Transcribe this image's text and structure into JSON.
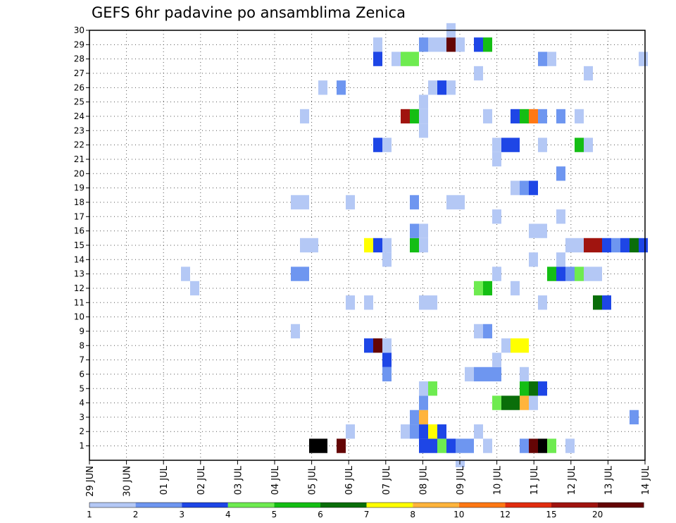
{
  "chart_data": {
    "type": "heatmap",
    "title": "GEFS 6hr padavine po ansamblima Zenica",
    "xlabel": "",
    "ylabel": "",
    "steps_per_day": 4,
    "x_tick_labels": [
      "29 JUN",
      "30 JUN",
      "01 JUL",
      "02 JUL",
      "03 JUL",
      "04 JUL",
      "05 JUL",
      "06 JUL",
      "07 JUL",
      "08 JUL",
      "09 JUL",
      "10 JUL",
      "11 JUL",
      "12 JUL",
      "13 JUL",
      "14 JUL"
    ],
    "members": [
      1,
      2,
      3,
      4,
      5,
      6,
      7,
      8,
      9,
      10,
      11,
      12,
      13,
      14,
      15,
      16,
      17,
      18,
      19,
      20,
      21,
      22,
      23,
      24,
      25,
      26,
      27,
      28,
      29,
      30
    ],
    "y_range": [
      0,
      30
    ],
    "grid": true,
    "legend_placement": "bottom",
    "color_scale": {
      "colors": [
        "#b4c8f5",
        "#6e96f0",
        "#1e46e6",
        "#6eeb50",
        "#14be14",
        "#0a6e0a",
        "#ffff00",
        "#ffb43c",
        "#ff7814",
        "#e12d0f",
        "#a0140f",
        "#640505"
      ],
      "labels": [
        "1",
        "2",
        "3",
        "4",
        "5",
        "6",
        "7",
        "8",
        "10",
        "12",
        "15",
        "20"
      ]
    },
    "values": [
      [
        1,
        24,
        23,
        20,
        0
      ],
      [
        1,
        25,
        23,
        20,
        0
      ],
      [
        1,
        27,
        14,
        12,
        0
      ],
      [
        1,
        36,
        20,
        3,
        0
      ],
      [
        1,
        37,
        20,
        3,
        0
      ],
      [
        1,
        38,
        20,
        4,
        0
      ],
      [
        1,
        39,
        20,
        3,
        0
      ],
      [
        1,
        40,
        20,
        2,
        0
      ],
      [
        1,
        41,
        20,
        2,
        0
      ],
      [
        1,
        43,
        24,
        1,
        0
      ],
      [
        1,
        47,
        12,
        2,
        0
      ],
      [
        1,
        48,
        12,
        12,
        0
      ],
      [
        1,
        49,
        12,
        13,
        0
      ],
      [
        1,
        50,
        12,
        4,
        0
      ],
      [
        1,
        52,
        12,
        1,
        0
      ],
      [
        2,
        28,
        14,
        1,
        0
      ],
      [
        2,
        34,
        17,
        1,
        0
      ],
      [
        2,
        35,
        17,
        2,
        0
      ],
      [
        2,
        36,
        17,
        3,
        0
      ],
      [
        2,
        37,
        17,
        7,
        0
      ],
      [
        2,
        38,
        17,
        3,
        0
      ],
      [
        2,
        42,
        17,
        1,
        0
      ],
      [
        3,
        35,
        18,
        2,
        0
      ],
      [
        3,
        36,
        18,
        8,
        0
      ],
      [
        3,
        59,
        19,
        2,
        0
      ],
      [
        4,
        36,
        18,
        2,
        0
      ],
      [
        4,
        44,
        22,
        4,
        0
      ],
      [
        4,
        45,
        22,
        6,
        0
      ],
      [
        4,
        46,
        22,
        6,
        0
      ],
      [
        4,
        47,
        22,
        8,
        0
      ],
      [
        4,
        48,
        22,
        1,
        0
      ],
      [
        5,
        36,
        19,
        1,
        0
      ],
      [
        5,
        37,
        19,
        4,
        0
      ],
      [
        5,
        47,
        21,
        5,
        0
      ],
      [
        5,
        48,
        21,
        6,
        0
      ],
      [
        5,
        49,
        21,
        3,
        0
      ],
      [
        6,
        32,
        16,
        2,
        0
      ],
      [
        6,
        41,
        16,
        1,
        0
      ],
      [
        6,
        42,
        16,
        2,
        0
      ],
      [
        6,
        43,
        16,
        2,
        0
      ],
      [
        6,
        44,
        16,
        2,
        0
      ],
      [
        6,
        47,
        16,
        1,
        0
      ],
      [
        7,
        32,
        10,
        3,
        0
      ],
      [
        7,
        44,
        26,
        1,
        0
      ],
      [
        8,
        30,
        13,
        3,
        0
      ],
      [
        8,
        31,
        13,
        12,
        0
      ],
      [
        8,
        32,
        13,
        1,
        0
      ],
      [
        8,
        45,
        25,
        1,
        0
      ],
      [
        8,
        46,
        25,
        7,
        0
      ],
      [
        8,
        47,
        25,
        7,
        0
      ],
      [
        9,
        22,
        25,
        1,
        0
      ],
      [
        9,
        42,
        26,
        1,
        0
      ],
      [
        9,
        43,
        26,
        2,
        0
      ],
      [
        11,
        28,
        14,
        1,
        0
      ],
      [
        11,
        30,
        15,
        1,
        0
      ],
      [
        11,
        36,
        18,
        1,
        0
      ],
      [
        11,
        37,
        18,
        1,
        0
      ],
      [
        11,
        49,
        20,
        1,
        0
      ],
      [
        11,
        55,
        24,
        6,
        0
      ],
      [
        11,
        56,
        24,
        3,
        0
      ],
      [
        12,
        11,
        25,
        1,
        0
      ],
      [
        12,
        42,
        21,
        4,
        0
      ],
      [
        12,
        43,
        21,
        5,
        0
      ],
      [
        12,
        46,
        21,
        1,
        0
      ],
      [
        13,
        10,
        25,
        1,
        0
      ],
      [
        13,
        22,
        14,
        2,
        0
      ],
      [
        13,
        23,
        14,
        2,
        0
      ],
      [
        13,
        44,
        25,
        1,
        0
      ],
      [
        13,
        50,
        22,
        5,
        0
      ],
      [
        13,
        51,
        22,
        3,
        0
      ],
      [
        13,
        52,
        22,
        2,
        0
      ],
      [
        13,
        53,
        22,
        4,
        0
      ],
      [
        13,
        54,
        22,
        1,
        0
      ],
      [
        13,
        55,
        22,
        1,
        0
      ],
      [
        14,
        32,
        7,
        1,
        0
      ],
      [
        14,
        48,
        11,
        1,
        0
      ],
      [
        14,
        51,
        11,
        1,
        0
      ],
      [
        15,
        23,
        19,
        1,
        0
      ],
      [
        15,
        24,
        19,
        1,
        0
      ],
      [
        15,
        30,
        17,
        7,
        0
      ],
      [
        15,
        31,
        17,
        3,
        0
      ],
      [
        15,
        32,
        17,
        1,
        0
      ],
      [
        15,
        35,
        19,
        5,
        0
      ],
      [
        15,
        36,
        19,
        1,
        0
      ],
      [
        15,
        52,
        18,
        1,
        0
      ],
      [
        15,
        53,
        18,
        1,
        0
      ],
      [
        15,
        54,
        18,
        11,
        0
      ],
      [
        15,
        55,
        18,
        11,
        0
      ],
      [
        15,
        56,
        18,
        3,
        0
      ],
      [
        15,
        57,
        18,
        2,
        0
      ],
      [
        15,
        58,
        18,
        3,
        0
      ],
      [
        15,
        59,
        18,
        6,
        0
      ],
      [
        15,
        60,
        18,
        3,
        0
      ],
      [
        16,
        35,
        17,
        2,
        0
      ],
      [
        16,
        36,
        17,
        1,
        0
      ],
      [
        16,
        48,
        23,
        1,
        0
      ],
      [
        16,
        49,
        23,
        1,
        0
      ],
      [
        17,
        44,
        11,
        1,
        0
      ],
      [
        17,
        51,
        11,
        1,
        0
      ],
      [
        18,
        22,
        7,
        1,
        0
      ],
      [
        18,
        23,
        7,
        1,
        0
      ],
      [
        18,
        28,
        7,
        1,
        0
      ],
      [
        18,
        35,
        16,
        2,
        0
      ],
      [
        18,
        39,
        12,
        1,
        0
      ],
      [
        18,
        40,
        12,
        1,
        0
      ],
      [
        19,
        46,
        24,
        1,
        0
      ],
      [
        19,
        47,
        24,
        2,
        0
      ],
      [
        19,
        48,
        24,
        3,
        0
      ],
      [
        20,
        51,
        23,
        2,
        0
      ],
      [
        21,
        44,
        27,
        1,
        0
      ],
      [
        22,
        31,
        15,
        3,
        0
      ],
      [
        22,
        32,
        15,
        1,
        0
      ],
      [
        22,
        44,
        26,
        1,
        0
      ],
      [
        22,
        45,
        26,
        3,
        0
      ],
      [
        22,
        46,
        26,
        3,
        0
      ],
      [
        22,
        49,
        26,
        1,
        0
      ],
      [
        22,
        53,
        26,
        5,
        0
      ],
      [
        22,
        54,
        26,
        1,
        0
      ],
      [
        23,
        36,
        23,
        1,
        0
      ],
      [
        24,
        23,
        14,
        1,
        0
      ],
      [
        24,
        34,
        15,
        11,
        0
      ],
      [
        24,
        35,
        15,
        5,
        0
      ],
      [
        24,
        36,
        15,
        1,
        0
      ],
      [
        24,
        43,
        27,
        1,
        0
      ],
      [
        24,
        46,
        27,
        3,
        0
      ],
      [
        24,
        47,
        27,
        5,
        0
      ],
      [
        24,
        48,
        27,
        9,
        0
      ],
      [
        24,
        49,
        27,
        2,
        0
      ],
      [
        24,
        51,
        27,
        2,
        0
      ],
      [
        24,
        53,
        27,
        1,
        0
      ],
      [
        25,
        36,
        26,
        1,
        0
      ],
      [
        26,
        25,
        27,
        1,
        0
      ],
      [
        26,
        27,
        25,
        2,
        0
      ],
      [
        26,
        37,
        28,
        1,
        0
      ],
      [
        26,
        38,
        28,
        3,
        0
      ],
      [
        26,
        39,
        28,
        1,
        0
      ],
      [
        27,
        42,
        14,
        1,
        0
      ],
      [
        27,
        54,
        25,
        1,
        0
      ],
      [
        28,
        31,
        3,
        3,
        0
      ],
      [
        28,
        33,
        5,
        1,
        0
      ],
      [
        28,
        34,
        5,
        4,
        0
      ],
      [
        28,
        35,
        5,
        4,
        0
      ],
      [
        28,
        49,
        20,
        2,
        0
      ],
      [
        28,
        50,
        20,
        1,
        0
      ],
      [
        28,
        60,
        20,
        1,
        0
      ],
      [
        29,
        31,
        28,
        1,
        0
      ],
      [
        29,
        36,
        30,
        2,
        0
      ],
      [
        29,
        37,
        30,
        1,
        0
      ],
      [
        29,
        38,
        30,
        1,
        0
      ],
      [
        29,
        39,
        30,
        12,
        0
      ],
      [
        29,
        40,
        30,
        1,
        0
      ],
      [
        29,
        42,
        24,
        3,
        0
      ],
      [
        29,
        43,
        24,
        5,
        0
      ],
      [
        30,
        39,
        29,
        1,
        0
      ],
      [
        0,
        40,
        29,
        1,
        0
      ]
    ]
  }
}
